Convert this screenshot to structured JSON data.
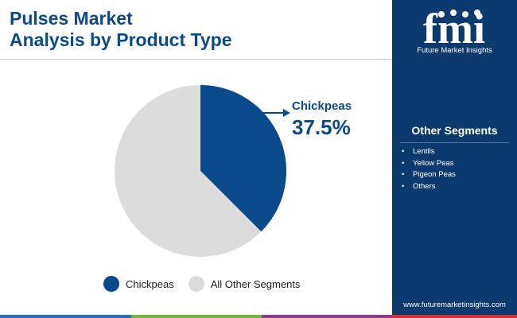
{
  "header": {
    "title_line1": "Pulses Market",
    "title_line2": "Analysis by Product Type"
  },
  "brand": {
    "name": "Future Market Insights",
    "logo_text": "fmi",
    "website": "www.futuremarketinsights.com"
  },
  "other_segments": {
    "title": "Other Segments",
    "items": [
      "Lentils",
      "Yellow Peas",
      "Pigeon Peas",
      "Others"
    ]
  },
  "colors": {
    "accent": "#0b3a6e",
    "highlight_slice": "#0b4a8a",
    "other_slice": "#dcdcdc"
  },
  "chart_data": {
    "type": "pie",
    "title": "Pulses Market Analysis by Product Type",
    "slices": [
      {
        "name": "Chickpeas",
        "value": 37.5,
        "label": "Chickpeas",
        "value_label": "37.5%",
        "color": "#0b4a8a"
      },
      {
        "name": "All Other Segments",
        "value": 62.5,
        "color": "#dcdcdc"
      }
    ],
    "legend": {
      "placement": "bottom",
      "entries": [
        "Chickpeas",
        "All Other Segments"
      ]
    }
  }
}
